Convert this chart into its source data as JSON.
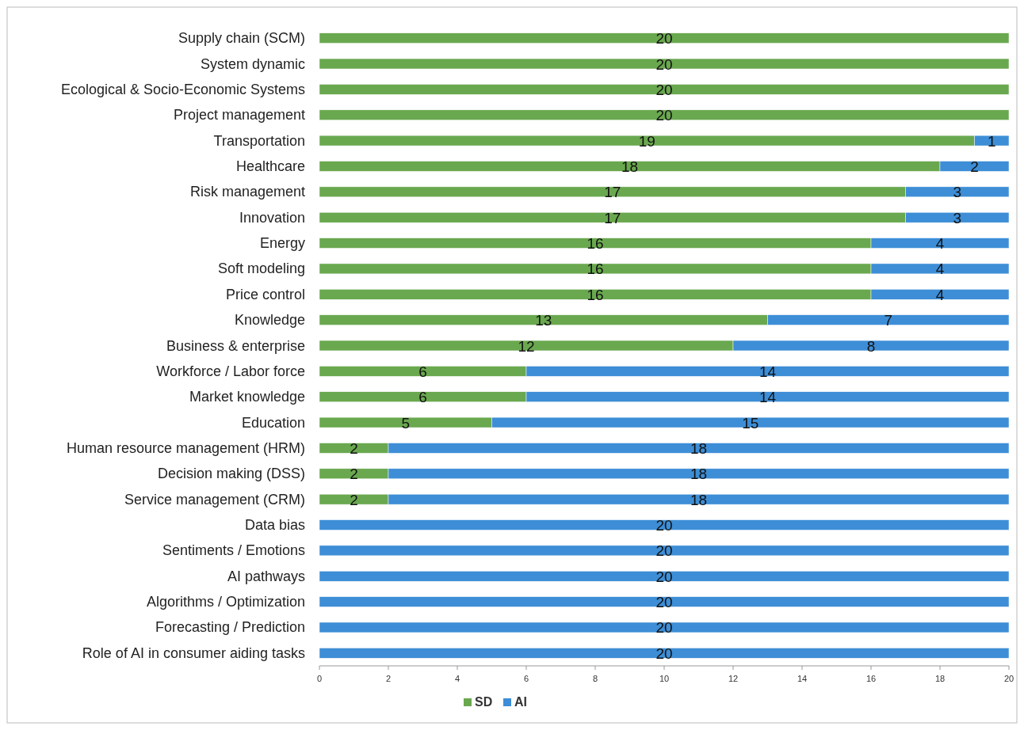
{
  "chart_data": {
    "type": "bar",
    "orientation": "horizontal",
    "stacked": true,
    "categories": [
      "Supply chain (SCM)",
      "System dynamic",
      "Ecological & Socio-Economic Systems",
      "Project management",
      "Transportation",
      "Healthcare",
      "Risk management",
      "Innovation",
      "Energy",
      "Soft modeling",
      "Price control",
      "Knowledge",
      "Business & enterprise",
      "Workforce / Labor force",
      "Market knowledge",
      "Education",
      "Human resource management (HRM)",
      "Decision making (DSS)",
      "Service management (CRM)",
      "Data bias",
      "Sentiments / Emotions",
      "AI pathways",
      "Algorithms / Optimization",
      "Forecasting / Prediction",
      "Role of AI in consumer aiding tasks"
    ],
    "series": [
      {
        "name": "SD",
        "color": "#6aa84f",
        "values": [
          20,
          20,
          20,
          20,
          19,
          18,
          17,
          17,
          16,
          16,
          16,
          13,
          12,
          6,
          6,
          5,
          2,
          2,
          2,
          0,
          0,
          0,
          0,
          0,
          0
        ],
        "value_labels": [
          "20",
          "20",
          "20",
          "20",
          "19",
          "18",
          "17",
          "17",
          "16",
          "16",
          "16",
          "13",
          "12",
          "6",
          "6",
          "5",
          "2",
          "2",
          "2",
          null,
          null,
          null,
          null,
          null,
          null
        ]
      },
      {
        "name": "AI",
        "color": "#3d8ed6",
        "values": [
          0,
          0,
          0,
          0,
          1,
          2,
          3,
          3,
          4,
          4,
          4,
          7,
          8,
          14,
          14,
          15,
          18,
          18,
          18,
          20,
          20,
          20,
          20,
          20,
          20
        ],
        "value_labels": [
          null,
          null,
          null,
          null,
          "1",
          "2",
          "3",
          "3",
          "4",
          "4",
          "4",
          "7",
          "8",
          "14",
          "14",
          "15",
          "18",
          "18",
          "18",
          "20",
          "20",
          "20",
          "20",
          "20",
          "20"
        ]
      }
    ],
    "xlim": [
      0,
      20
    ],
    "xticks": [
      0,
      2,
      4,
      6,
      8,
      10,
      12,
      14,
      16,
      18,
      20
    ],
    "legend": "bottom"
  }
}
